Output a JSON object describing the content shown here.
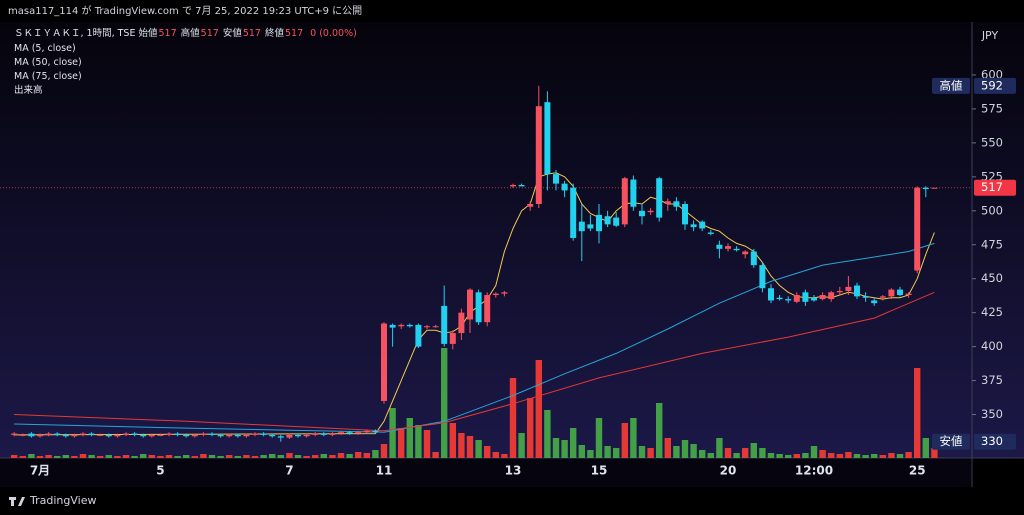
{
  "header": {
    "title": "masa117_114 が TradingView.com で 7月 25, 2022 19:23 UTC+9 に公開"
  },
  "footer": {
    "brand": "TradingView"
  },
  "chart_data": {
    "type": "candlestick",
    "symbol": "ＳＫＩＹＡＫＩ, 1時間, TSE",
    "ohlc_legend": [
      {
        "label": "始値",
        "value": 517
      },
      {
        "label": "高値",
        "value": 517
      },
      {
        "label": "安値",
        "value": 517
      },
      {
        "label": "終値",
        "value": 517
      }
    ],
    "change": "0 (0.00%)",
    "currency": "JPY",
    "categories": [
      null,
      null,
      null,
      "7月",
      null,
      null,
      null,
      null,
      null,
      null,
      null,
      null,
      null,
      null,
      null,
      null,
      null,
      "5",
      null,
      null,
      null,
      null,
      null,
      null,
      null,
      null,
      null,
      null,
      null,
      null,
      null,
      null,
      "7",
      null,
      null,
      null,
      null,
      null,
      null,
      null,
      null,
      null,
      null,
      "11",
      null,
      null,
      null,
      null,
      null,
      null,
      null,
      null,
      null,
      null,
      null,
      null,
      null,
      null,
      "13",
      null,
      null,
      null,
      null,
      null,
      null,
      null,
      null,
      null,
      "15",
      null,
      null,
      null,
      null,
      null,
      null,
      null,
      null,
      null,
      null,
      null,
      null,
      null,
      null,
      "20",
      null,
      null,
      null,
      null,
      null,
      null,
      null,
      null,
      null,
      "12:00",
      null,
      null,
      null,
      null,
      null,
      null,
      null,
      null,
      null,
      null,
      null,
      "25",
      null,
      null
    ],
    "open": [
      335,
      335,
      336,
      334,
      335,
      336,
      335,
      334,
      335,
      336,
      335,
      335,
      334,
      335,
      336,
      335,
      334,
      335,
      335,
      336,
      335,
      334,
      335,
      336,
      335,
      334,
      335,
      334,
      335,
      336,
      335,
      334,
      333,
      335,
      334,
      335,
      336,
      335,
      336,
      337,
      336,
      337,
      338,
      360,
      416,
      415,
      416,
      416,
      415,
      415,
      430,
      402,
      410,
      420,
      440,
      418,
      438,
      439,
      518,
      519,
      503,
      505,
      580,
      527,
      520,
      517,
      492,
      490,
      497,
      496,
      495,
      490,
      523,
      500,
      499,
      524,
      505,
      507,
      505,
      490,
      492,
      484,
      475,
      472,
      472,
      468,
      470,
      460,
      443,
      436,
      435,
      433,
      440,
      436,
      435,
      435,
      440,
      441,
      445,
      437,
      434,
      436,
      437,
      442,
      438,
      456,
      517,
      517
    ],
    "high": [
      337,
      336,
      337,
      336,
      337,
      337,
      336,
      336,
      337,
      337,
      336,
      336,
      336,
      337,
      337,
      336,
      336,
      336,
      337,
      337,
      336,
      336,
      337,
      337,
      336,
      336,
      336,
      336,
      337,
      337,
      336,
      335,
      336,
      336,
      336,
      337,
      337,
      337,
      338,
      338,
      338,
      339,
      339,
      418,
      417,
      417,
      417,
      417,
      416,
      416,
      445,
      412,
      428,
      443,
      442,
      440,
      440,
      441,
      520,
      520,
      507,
      592,
      588,
      530,
      522,
      520,
      505,
      497,
      505,
      500,
      499,
      525,
      526,
      505,
      502,
      525,
      509,
      510,
      507,
      493,
      493,
      486,
      478,
      476,
      474,
      471,
      472,
      462,
      446,
      438,
      437,
      440,
      442,
      438,
      440,
      441,
      444,
      452,
      447,
      440,
      436,
      438,
      443,
      444,
      440,
      518,
      518,
      517
    ],
    "low": [
      334,
      334,
      333,
      333,
      334,
      334,
      333,
      333,
      334,
      334,
      334,
      333,
      333,
      334,
      334,
      333,
      333,
      334,
      334,
      334,
      333,
      333,
      334,
      334,
      333,
      333,
      333,
      333,
      334,
      334,
      333,
      330,
      332,
      333,
      333,
      334,
      334,
      334,
      335,
      335,
      335,
      336,
      336,
      358,
      400,
      413,
      414,
      399,
      413,
      414,
      400,
      398,
      405,
      410,
      416,
      415,
      436,
      437,
      517,
      518,
      500,
      502,
      515,
      515,
      510,
      478,
      463,
      485,
      476,
      488,
      488,
      488,
      500,
      490,
      497,
      492,
      500,
      500,
      486,
      485,
      485,
      482,
      465,
      470,
      470,
      465,
      458,
      440,
      432,
      434,
      432,
      432,
      430,
      433,
      434,
      433,
      438,
      438,
      435,
      433,
      430,
      434,
      435,
      437,
      436,
      454,
      510,
      517
    ],
    "close": [
      336,
      335,
      334,
      335,
      336,
      335,
      334,
      335,
      336,
      335,
      335,
      334,
      335,
      336,
      335,
      334,
      335,
      335,
      336,
      335,
      334,
      335,
      336,
      335,
      334,
      335,
      334,
      335,
      336,
      335,
      334,
      333,
      335,
      334,
      335,
      336,
      335,
      336,
      337,
      336,
      337,
      338,
      337,
      417,
      414,
      416,
      415,
      400,
      415,
      415,
      402,
      410,
      425,
      442,
      418,
      438,
      439,
      440,
      519,
      518,
      505,
      577,
      527,
      520,
      515,
      480,
      485,
      487,
      485,
      490,
      489,
      524,
      503,
      496,
      500,
      495,
      507,
      503,
      490,
      488,
      487,
      483,
      472,
      474,
      471,
      470,
      460,
      443,
      434,
      435,
      434,
      438,
      433,
      434,
      438,
      440,
      441,
      444,
      437,
      436,
      432,
      437,
      442,
      438,
      439,
      517,
      516,
      517
    ],
    "up_color": "#f7525f",
    "down_color": "#22d1ee",
    "volume": {
      "name": "出来高",
      "up_color": "#e53935",
      "down_color": "#43a047",
      "values": [
        3,
        2,
        4,
        2,
        3,
        2,
        3,
        2,
        4,
        3,
        2,
        3,
        2,
        3,
        2,
        4,
        3,
        2,
        3,
        2,
        3,
        2,
        4,
        3,
        2,
        3,
        2,
        3,
        2,
        3,
        4,
        3,
        5,
        3,
        2,
        3,
        4,
        3,
        5,
        4,
        6,
        5,
        8,
        14,
        50,
        30,
        40,
        33,
        28,
        6,
        110,
        35,
        25,
        22,
        18,
        12,
        6,
        4,
        80,
        25,
        60,
        98,
        48,
        20,
        18,
        30,
        13,
        8,
        40,
        12,
        10,
        35,
        40,
        12,
        10,
        55,
        20,
        12,
        18,
        14,
        8,
        5,
        20,
        10,
        5,
        10,
        15,
        10,
        5,
        4,
        3,
        4,
        5,
        12,
        8,
        5,
        4,
        6,
        4,
        3,
        4,
        3,
        5,
        4,
        6,
        90,
        20,
        10
      ]
    },
    "series": [
      {
        "name": "MA (5, close)",
        "color": "#f2c94c",
        "x": [
          0,
          42,
          43,
          44,
          45,
          46,
          47,
          48,
          49,
          50,
          51,
          52,
          53,
          54,
          55,
          56,
          57,
          58,
          59,
          60,
          61,
          62,
          63,
          64,
          65,
          66,
          67,
          68,
          69,
          70,
          71,
          72,
          73,
          74,
          75,
          76,
          77,
          78,
          79,
          80,
          81,
          82,
          83,
          84,
          85,
          86,
          87,
          88,
          89,
          90,
          91,
          92,
          93,
          94,
          95,
          96,
          97,
          98,
          99,
          100,
          101,
          102,
          103,
          104,
          105,
          106,
          107
        ],
        "values": [
          335,
          336,
          345,
          360,
          375,
          390,
          405,
          412,
          412,
          410,
          411,
          415,
          425,
          430,
          435,
          445,
          470,
          487,
          500,
          505,
          525,
          527,
          528,
          525,
          518,
          505,
          498,
          495,
          492,
          500,
          505,
          506,
          505,
          510,
          508,
          505,
          505,
          500,
          495,
          490,
          487,
          485,
          480,
          476,
          474,
          470,
          462,
          452,
          445,
          440,
          437,
          436,
          436,
          437,
          436,
          438,
          440,
          439,
          437,
          436,
          435,
          436,
          436,
          438,
          450,
          468,
          484
        ]
      },
      {
        "name": "MA (50, close)",
        "color": "#26a5d8",
        "x": [
          0,
          20,
          43,
          50,
          58,
          64,
          70,
          76,
          82,
          88,
          94,
          100,
          104,
          107
        ],
        "values": [
          343,
          340,
          337,
          345,
          364,
          380,
          395,
          413,
          432,
          448,
          460,
          466,
          470,
          476
        ]
      },
      {
        "name": "MA (75, close)",
        "color": "#e53935",
        "x": [
          0,
          20,
          43,
          50,
          58,
          68,
          80,
          90,
          100,
          107
        ],
        "values": [
          350,
          345,
          338,
          344,
          358,
          377,
          395,
          407,
          421,
          440
        ]
      }
    ],
    "ylim": [
      318,
      639
    ],
    "yticks": [
      350,
      375,
      400,
      425,
      450,
      475,
      500,
      525,
      550,
      575,
      600
    ],
    "last_price": 517,
    "high_tag": {
      "label": "高値",
      "value": 592
    },
    "low_tag": {
      "label": "安値",
      "value": 330
    }
  }
}
